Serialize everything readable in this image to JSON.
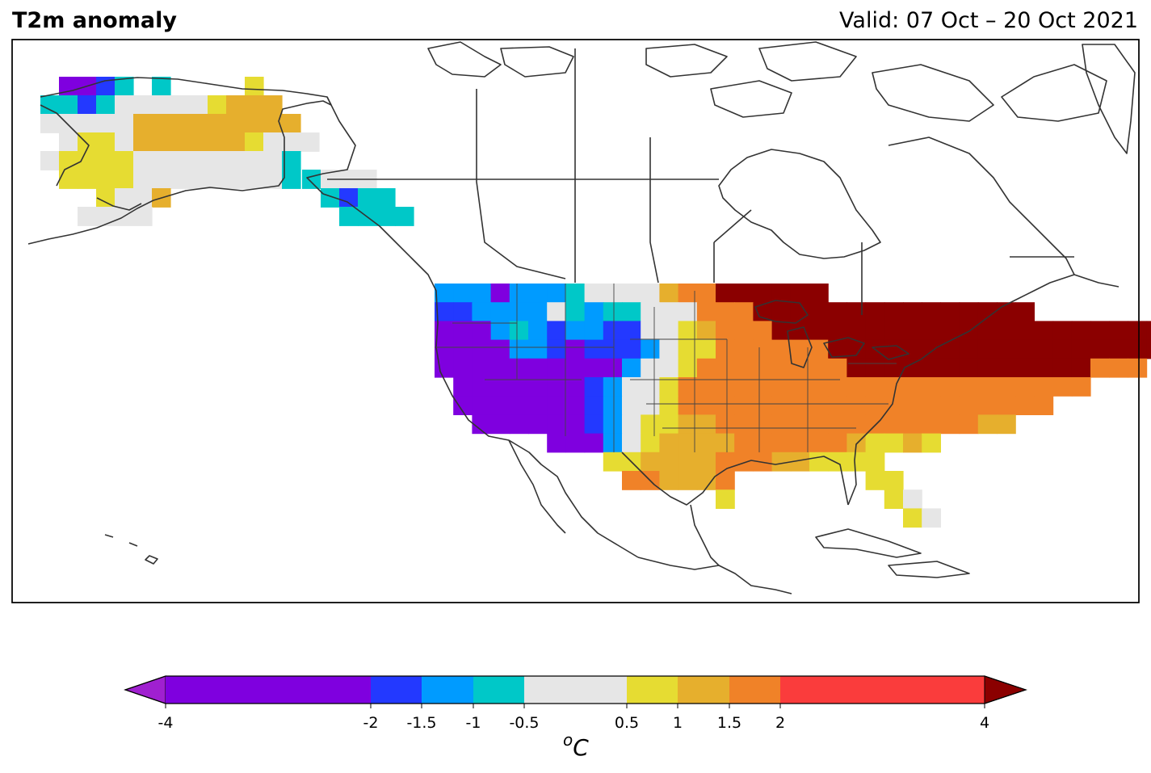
{
  "header": {
    "title": "T2m anomaly",
    "valid": "Valid: 07 Oct – 20 Oct 2021"
  },
  "colorbar": {
    "unit": "oC",
    "unit_base": "C",
    "unit_superscript": "o",
    "ticks": [
      "-4",
      "-2",
      "-1.5",
      "-1",
      "-0.5",
      "0.5",
      "1",
      "1.5",
      "2",
      "4"
    ],
    "bins": [
      {
        "from": -4,
        "to": -2,
        "color": "#7f00df"
      },
      {
        "from": -2,
        "to": -1.5,
        "color": "#2339ff"
      },
      {
        "from": -1.5,
        "to": -1,
        "color": "#009bff"
      },
      {
        "from": -1,
        "to": -0.5,
        "color": "#00c8c8"
      },
      {
        "from": -0.5,
        "to": 0.5,
        "color": "#e6e6e6"
      },
      {
        "from": 0.5,
        "to": 1,
        "color": "#e6dc32"
      },
      {
        "from": 1,
        "to": 1.5,
        "color": "#e6af2d"
      },
      {
        "from": 1.5,
        "to": 2,
        "color": "#f08228"
      },
      {
        "from": 2,
        "to": 4,
        "color": "#fa3c3c"
      }
    ],
    "under_color": "#a020d0",
    "over_color": "#8b0000"
  },
  "map": {
    "region": "North America",
    "field": "2m temperature anomaly",
    "coastline_color": "#333333"
  }
}
